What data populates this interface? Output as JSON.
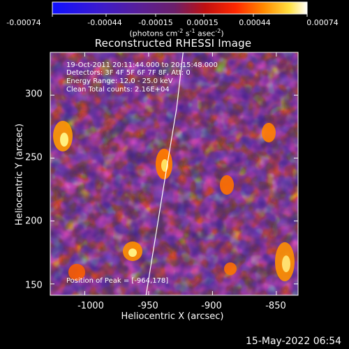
{
  "colorbar": {
    "ticks": [
      "-0.00074",
      "-0.00044",
      "-0.00015",
      "0.00015",
      "0.00044",
      "0.00074"
    ],
    "unit_parts": [
      "(photons cm",
      "-2",
      " s",
      "-1",
      " asec",
      "-2",
      ")"
    ],
    "colormap": "blue-purple-red-orange-yellow-white"
  },
  "plot": {
    "title": "Reconstructed RHESSI Image",
    "annotations": [
      "19-Oct-2011 20:11:44.000 to 20:15:48.000",
      "Detectors: 3F 4F 5F 6F 7F 8F, Att: 0",
      "Energy Range: 12.0 - 25.0 keV",
      "Clean    Total counts: 2.16E+04"
    ],
    "peak_label": "Position of Peak = [-964,178]",
    "xlabel": "Heliocentric X (arcsec)",
    "ylabel": "Heliocentric Y (arcsec)",
    "x_ticks": [
      "-1000",
      "-950",
      "-900",
      "-850"
    ],
    "y_ticks": [
      "300",
      "250",
      "200",
      "150"
    ],
    "x_range": [
      -1027,
      -833
    ],
    "y_range": [
      141,
      334
    ],
    "limb_curve": [
      [
        -952,
        141
      ],
      [
        -937,
        235
      ],
      [
        -928,
        290
      ],
      [
        -923,
        334
      ]
    ]
  },
  "footer": {
    "date": "15-May-2022 06:54"
  },
  "colors": {
    "background": "#000000",
    "axes": "#ffffff",
    "limb": "#ffffff"
  }
}
